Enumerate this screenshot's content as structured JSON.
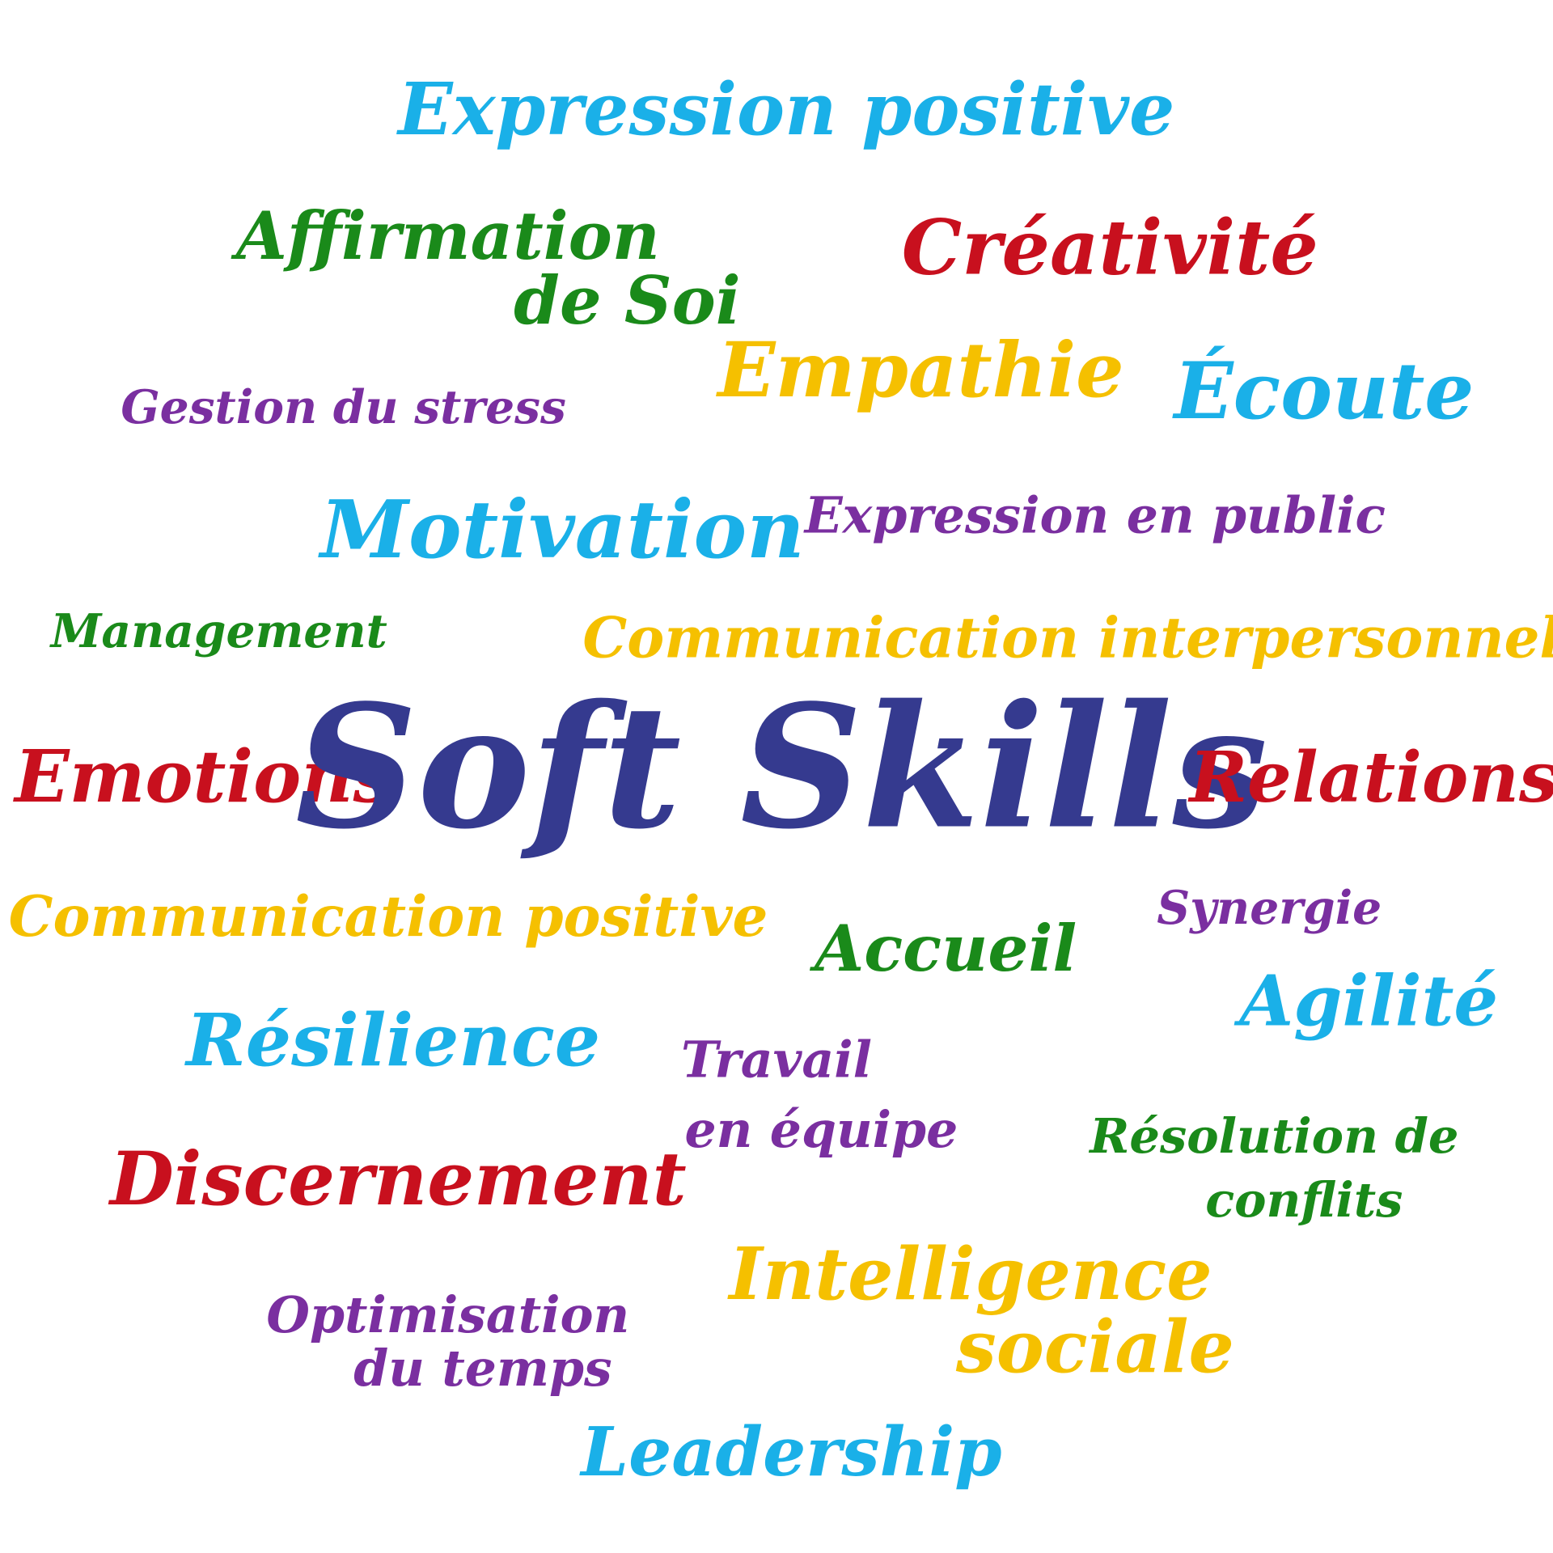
{
  "words": [
    {
      "lines": [
        "Expression positive"
      ],
      "color": "#1ab0e8"
    },
    {
      "lines": [
        "Affirmation",
        "de Soi"
      ],
      "color": "#1a8a1a"
    },
    {
      "lines": [
        "Créativité"
      ],
      "color": "#c8101e"
    },
    {
      "lines": [
        "Empathie"
      ],
      "color": "#f5c000"
    },
    {
      "lines": [
        "Écoute"
      ],
      "color": "#1ab0e8"
    },
    {
      "lines": [
        "Gestion du stress"
      ],
      "color": "#7a2fa0"
    },
    {
      "lines": [
        "Motivation"
      ],
      "color": "#1ab0e8"
    },
    {
      "lines": [
        "Expression en public"
      ],
      "color": "#7a2fa0"
    },
    {
      "lines": [
        "Management"
      ],
      "color": "#1a8a1a"
    },
    {
      "lines": [
        "Communication interpersonnelle"
      ],
      "color": "#f5c000"
    },
    {
      "lines": [
        "Emotions"
      ],
      "color": "#c8101e"
    },
    {
      "lines": [
        "Soft Skills"
      ],
      "color": "#353a8f"
    },
    {
      "lines": [
        "Relations"
      ],
      "color": "#c8101e"
    },
    {
      "lines": [
        "Communication positive"
      ],
      "color": "#f5c000"
    },
    {
      "lines": [
        "Accueil"
      ],
      "color": "#1a8a1a"
    },
    {
      "lines": [
        "Synergie"
      ],
      "color": "#7a2fa0"
    },
    {
      "lines": [
        "Agilité"
      ],
      "color": "#1ab0e8"
    },
    {
      "lines": [
        "Résilience"
      ],
      "color": "#1ab0e8"
    },
    {
      "lines": [
        "Travail",
        "en équipe"
      ],
      "color": "#7a2fa0"
    },
    {
      "lines": [
        "Résolution de",
        "conflits"
      ],
      "color": "#1a8a1a"
    },
    {
      "lines": [
        "Discernement"
      ],
      "color": "#c8101e"
    },
    {
      "lines": [
        "Intelligence",
        "sociale"
      ],
      "color": "#f5c000"
    },
    {
      "lines": [
        "Optimisation",
        "du temps"
      ],
      "color": "#7a2fa0"
    },
    {
      "lines": [
        "Leadership"
      ],
      "color": "#1ab0e8"
    }
  ]
}
